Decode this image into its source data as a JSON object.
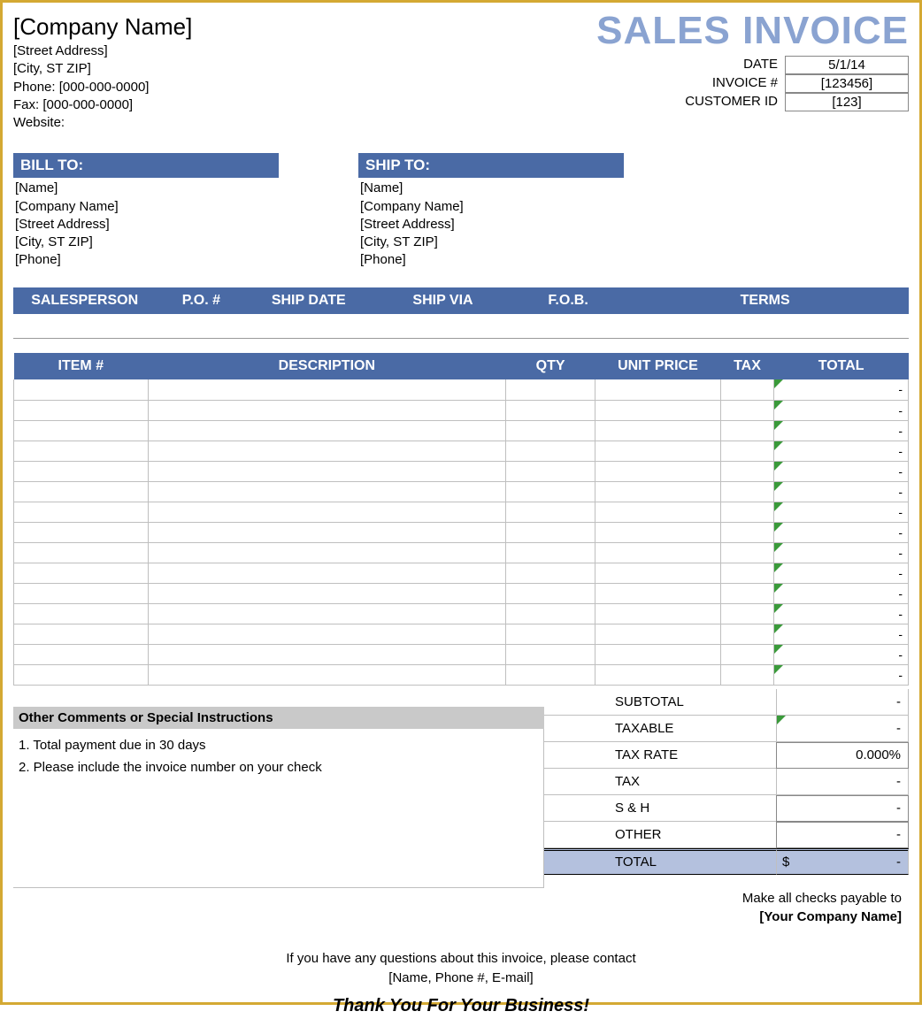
{
  "colors": {
    "accent_header": "#4a6aa5",
    "title_color": "#8aa3d1",
    "comments_head_bg": "#c9c9c9",
    "total_row_bg": "#b4c1de",
    "triangle": "#3a9a3a",
    "border_outer": "#d4a933"
  },
  "title": "SALES INVOICE",
  "company": {
    "name": "[Company Name]",
    "street": "[Street Address]",
    "city": "[City, ST  ZIP]",
    "phone": "Phone: [000-000-0000]",
    "fax": "Fax: [000-000-0000]",
    "website": "Website:"
  },
  "meta": {
    "date_label": "DATE",
    "date_value": "5/1/14",
    "invoice_label": "INVOICE #",
    "invoice_value": "[123456]",
    "customer_label": "CUSTOMER ID",
    "customer_value": "[123]"
  },
  "bill_to": {
    "header": "BILL TO:",
    "name": "[Name]",
    "company": "[Company Name]",
    "street": "[Street Address]",
    "city": "[City, ST  ZIP]",
    "phone": "[Phone]"
  },
  "ship_to": {
    "header": "SHIP TO:",
    "name": "[Name]",
    "company": "[Company Name]",
    "street": "[Street Address]",
    "city": "[City, ST  ZIP]",
    "phone": "[Phone]"
  },
  "info_headers": {
    "salesperson": "SALESPERSON",
    "po": "P.O. #",
    "ship_date": "SHIP DATE",
    "ship_via": "SHIP VIA",
    "fob": "F.O.B.",
    "terms": "TERMS"
  },
  "items_headers": {
    "item": "ITEM #",
    "desc": "DESCRIPTION",
    "qty": "QTY",
    "unit": "UNIT PRICE",
    "tax": "TAX",
    "total": "TOTAL"
  },
  "items_placeholder": "-",
  "item_row_count": 15,
  "col_widths_pct": {
    "item": 15,
    "desc": 40,
    "qty": 10,
    "unit": 14,
    "tax": 6,
    "total": 15
  },
  "comments": {
    "header": "Other Comments or Special Instructions",
    "line1": "1. Total payment due in 30 days",
    "line2": "2. Please include the invoice number on your check"
  },
  "summary": {
    "subtotal_label": "SUBTOTAL",
    "subtotal_value": "-",
    "taxable_label": "TAXABLE",
    "taxable_value": "-",
    "taxrate_label": "TAX RATE",
    "taxrate_value": "0.000%",
    "tax_label": "TAX",
    "tax_value": "-",
    "sh_label": "S & H",
    "sh_value": "-",
    "other_label": "OTHER",
    "other_value": "-",
    "total_label": "TOTAL",
    "total_currency": "$",
    "total_value": "-"
  },
  "payable": {
    "line1": "Make all checks payable to",
    "line2": "[Your Company Name]"
  },
  "footer": {
    "line1": "If you have any questions about this invoice, please contact",
    "line2": "[Name, Phone #, E-mail]",
    "thanks": "Thank You For Your Business!"
  }
}
